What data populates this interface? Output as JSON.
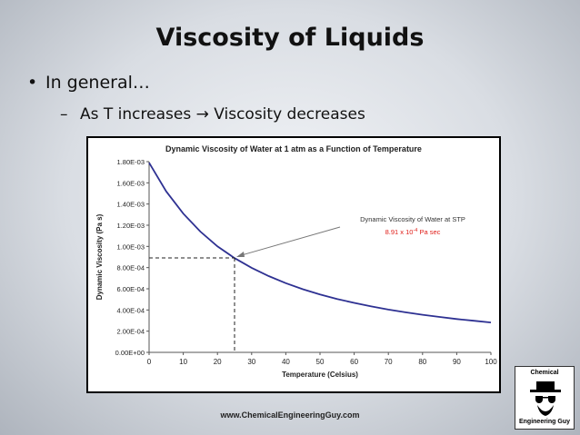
{
  "slide": {
    "title": "Viscosity of Liquids",
    "bullet": "In general…",
    "bullet_marker": "•",
    "sub_bullet": "As T increases → Viscosity decreases",
    "sub_bullet_marker": "–",
    "footer_url": "www.ChemicalEngineeringGuy.com"
  },
  "logo": {
    "top_text": "Chemical",
    "bottom_text": "Engineering Guy",
    "icon": "hat-and-glasses-icon"
  },
  "chart_data": {
    "type": "line",
    "title": "Dynamic Viscosity of Water at 1 atm as a Function of Temperature",
    "xlabel": "Temperature (Celsius)",
    "ylabel": "Dynamic Viscosity (Pa  s)",
    "xlim": [
      0,
      100
    ],
    "ylim": [
      0,
      0.0018
    ],
    "x_ticks": [
      "0",
      "10",
      "20",
      "30",
      "40",
      "50",
      "60",
      "70",
      "80",
      "90",
      "100"
    ],
    "y_ticks": [
      "0.00E+00",
      "2.00E-04",
      "4.00E-04",
      "6.00E-04",
      "8.00E-04",
      "1.00E-03",
      "1.20E-03",
      "1.40E-03",
      "1.60E-03",
      "1.80E-03"
    ],
    "grid": false,
    "line_color": "#2e3192",
    "series": [
      {
        "x": [
          0,
          5,
          10,
          15,
          20,
          25,
          30,
          35,
          40,
          45,
          50,
          55,
          60,
          65,
          70,
          75,
          80,
          85,
          90,
          95,
          100
        ],
        "y": [
          0.00179,
          0.00152,
          0.00131,
          0.00114,
          0.001,
          0.00089,
          0.000798,
          0.00072,
          0.000653,
          0.000596,
          0.000547,
          0.000504,
          0.000467,
          0.000434,
          0.000404,
          0.000378,
          0.000355,
          0.000334,
          0.000315,
          0.000298,
          0.000282
        ]
      }
    ],
    "annotation": {
      "text": "Dynamic Viscosity of Water at STP",
      "value_text": "8.91 x 10",
      "value_exp": "-4",
      "value_unit": " Pa sec",
      "value_color": "#e0201b",
      "x": 25,
      "y": 0.000891
    }
  }
}
